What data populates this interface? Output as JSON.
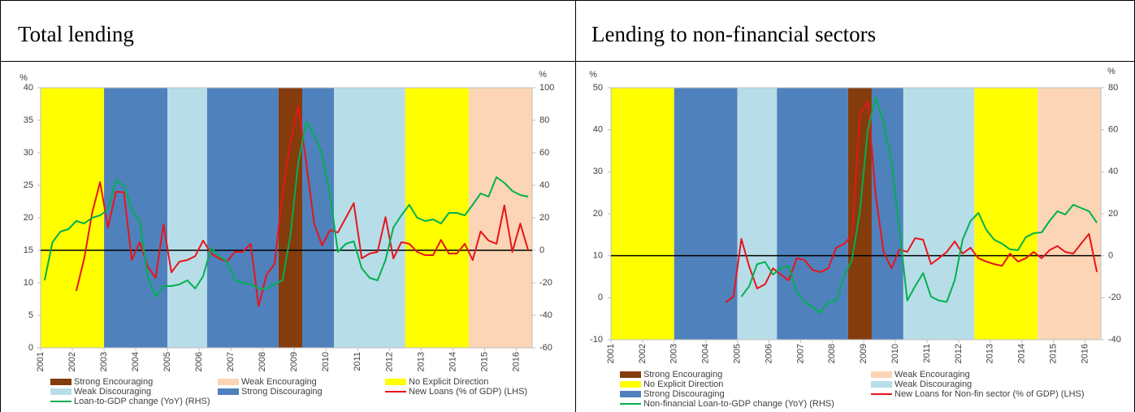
{
  "table": {
    "headers": [
      "Total lending",
      "Lending to non-financial sectors"
    ]
  },
  "chart_data": [
    {
      "type": "line",
      "y_unit": "%",
      "y2_unit": "%",
      "categories": [
        "2001",
        null,
        null,
        null,
        "2002",
        null,
        null,
        null,
        "2003",
        null,
        null,
        null,
        "2004",
        null,
        null,
        null,
        "2005",
        null,
        null,
        null,
        "2006",
        null,
        null,
        null,
        "2007",
        null,
        null,
        null,
        "2008",
        null,
        null,
        null,
        "2009",
        null,
        null,
        null,
        "2010",
        null,
        null,
        null,
        "2011",
        null,
        null,
        null,
        "2012",
        null,
        null,
        null,
        "2013",
        null,
        null,
        null,
        "2014",
        null,
        null,
        null,
        "2015",
        null,
        null,
        null,
        "2016",
        null
      ],
      "ylim": [
        0,
        40
      ],
      "yticks": [
        0,
        5,
        10,
        15,
        20,
        25,
        30,
        35,
        40
      ],
      "y2lim": [
        -60,
        100
      ],
      "y2ticks": [
        -60,
        -40,
        -20,
        0,
        20,
        40,
        60,
        80,
        100
      ],
      "y2_zero_line": true,
      "regimes": [
        {
          "name": "Strong Encouraging",
          "color": "#843c0c"
        },
        {
          "name": "Weak Encouraging",
          "color": "#fbd5b5"
        },
        {
          "name": "No Explicit Direction",
          "color": "#ffff00"
        },
        {
          "name": "Weak Discouraging",
          "color": "#b7dee8"
        },
        {
          "name": "Strong Discouraging",
          "color": "#4f81bd"
        }
      ],
      "periods": [
        {
          "regime": 2,
          "start": 0,
          "end": 8
        },
        {
          "regime": 4,
          "start": 8,
          "end": 16
        },
        {
          "regime": 3,
          "start": 16,
          "end": 21
        },
        {
          "regime": 4,
          "start": 21,
          "end": 30
        },
        {
          "regime": 0,
          "start": 30,
          "end": 33
        },
        {
          "regime": 4,
          "start": 33,
          "end": 37
        },
        {
          "regime": 3,
          "start": 37,
          "end": 46
        },
        {
          "regime": 2,
          "start": 46,
          "end": 54
        },
        {
          "regime": 1,
          "start": 54,
          "end": 62
        }
      ],
      "series": [
        {
          "name": "New Loans (% of GDP) (LHS)",
          "color": "#e8141b",
          "axis": "y",
          "values": [
            null,
            null,
            null,
            null,
            8.75,
            13.75,
            20.75,
            25.5,
            18.5,
            24,
            23.9,
            13.5,
            16.25,
            12.5,
            10.75,
            19,
            11.6,
            13.25,
            13.5,
            14.1,
            16.5,
            14.5,
            13.75,
            13.25,
            14.75,
            14.75,
            16,
            6.4,
            11.25,
            12.9,
            23.5,
            31.6,
            37.25,
            28.5,
            19.1,
            15.75,
            18.1,
            17.75,
            20,
            22.25,
            13.75,
            14.5,
            14.75,
            20.1,
            13.75,
            16.25,
            16,
            14.75,
            14.25,
            14.25,
            16.6,
            14.5,
            14.5,
            16,
            13.5,
            17.9,
            16.5,
            16,
            21.9,
            14.75,
            19.1,
            15
          ]
        },
        {
          "name": "Loan-to-GDP change (YoY) (RHS)",
          "color": "#00b050",
          "axis": "y2",
          "values": [
            -18.5,
            5,
            11.5,
            13,
            18,
            16.5,
            20,
            21.5,
            25,
            43,
            40,
            25,
            18,
            -16,
            -28.5,
            -22,
            -22,
            -21,
            -18.5,
            -23.5,
            -16,
            1.5,
            -3.5,
            -7,
            -18.5,
            -20,
            -21,
            -23.5,
            -23.5,
            -21,
            -18.5,
            9,
            54,
            79,
            71.5,
            59,
            34,
            -1,
            4,
            5.5,
            -11,
            -17,
            -18.5,
            -6,
            14,
            21.5,
            28,
            20,
            18,
            19,
            16.5,
            23,
            23,
            21.5,
            28,
            35,
            33,
            45,
            41.5,
            36.5,
            34,
            33
          ]
        }
      ]
    },
    {
      "type": "line",
      "y_unit": "%",
      "y2_unit": "%",
      "categories": [
        "2001",
        null,
        null,
        null,
        "2002",
        null,
        null,
        null,
        "2003",
        null,
        null,
        null,
        "2004",
        null,
        null,
        null,
        "2005",
        null,
        null,
        null,
        "2006",
        null,
        null,
        null,
        "2007",
        null,
        null,
        null,
        "2008",
        null,
        null,
        null,
        "2009",
        null,
        null,
        null,
        "2010",
        null,
        null,
        null,
        "2011",
        null,
        null,
        null,
        "2012",
        null,
        null,
        null,
        "2013",
        null,
        null,
        null,
        "2014",
        null,
        null,
        null,
        "2015",
        null,
        null,
        null,
        "2016",
        null
      ],
      "ylim": [
        -10,
        50
      ],
      "yticks": [
        -10,
        0,
        10,
        20,
        30,
        40,
        50
      ],
      "y2lim": [
        -40,
        80
      ],
      "y2ticks": [
        -40,
        -20,
        0,
        20,
        40,
        60,
        80
      ],
      "y2_zero_line": true,
      "regimes": [
        {
          "name": "Strong Encouraging",
          "color": "#843c0c"
        },
        {
          "name": "Weak Encouraging",
          "color": "#fbd5b5"
        },
        {
          "name": "No Explicit Direction",
          "color": "#ffff00"
        },
        {
          "name": "Weak Discouraging",
          "color": "#b7dee8"
        },
        {
          "name": "Strong Discouraging",
          "color": "#4f81bd"
        }
      ],
      "periods": [
        {
          "regime": 2,
          "start": 0,
          "end": 8
        },
        {
          "regime": 4,
          "start": 8,
          "end": 16
        },
        {
          "regime": 3,
          "start": 16,
          "end": 21
        },
        {
          "regime": 4,
          "start": 21,
          "end": 30
        },
        {
          "regime": 0,
          "start": 30,
          "end": 33
        },
        {
          "regime": 4,
          "start": 33,
          "end": 37
        },
        {
          "regime": 3,
          "start": 37,
          "end": 46
        },
        {
          "regime": 2,
          "start": 46,
          "end": 54
        },
        {
          "regime": 1,
          "start": 54,
          "end": 62
        }
      ],
      "series": [
        {
          "name": "New Loans for Non-fin sector (% of GDP) (LHS)",
          "color": "#e8141b",
          "axis": "y",
          "values": [
            null,
            null,
            null,
            null,
            null,
            null,
            null,
            null,
            null,
            null,
            null,
            null,
            null,
            null,
            -1.1,
            0.26,
            14,
            7.4,
            2.2,
            3.2,
            7,
            5.5,
            4.1,
            9.4,
            9,
            6.6,
            6.1,
            7,
            11.9,
            12.8,
            14.8,
            43.8,
            46.7,
            24.4,
            10.9,
            7,
            11.5,
            10.9,
            14.2,
            13.8,
            8,
            9.4,
            10.9,
            13.4,
            10.5,
            11.9,
            9.4,
            8.6,
            8,
            7.6,
            10.5,
            8.6,
            9.4,
            10.9,
            9.4,
            11.3,
            12.3,
            10.9,
            10.5,
            12.9,
            15.2,
            6.1
          ]
        },
        {
          "name": "Non-financial Loan-to-GDP change (YoY) (RHS)",
          "color": "#00b050",
          "axis": "y2",
          "values": [
            null,
            null,
            null,
            null,
            null,
            null,
            null,
            null,
            null,
            null,
            null,
            null,
            null,
            null,
            null,
            null,
            -19.5,
            -14.5,
            -4,
            -3,
            -9,
            -6,
            -4.8,
            -17.5,
            -22,
            -24.5,
            -27.2,
            -22,
            -21.4,
            -9.8,
            -2,
            21.2,
            59.9,
            75.4,
            63.8,
            44.4,
            12.6,
            -21.4,
            -14.5,
            -8.3,
            -19.5,
            -21.4,
            -22,
            -11.7,
            7.6,
            16.5,
            20.4,
            12.3,
            7.6,
            5.7,
            3,
            2.6,
            8.8,
            10.7,
            11.1,
            16.5,
            21.2,
            19.6,
            24.3,
            22.7,
            21.2,
            15.7
          ]
        }
      ]
    }
  ]
}
